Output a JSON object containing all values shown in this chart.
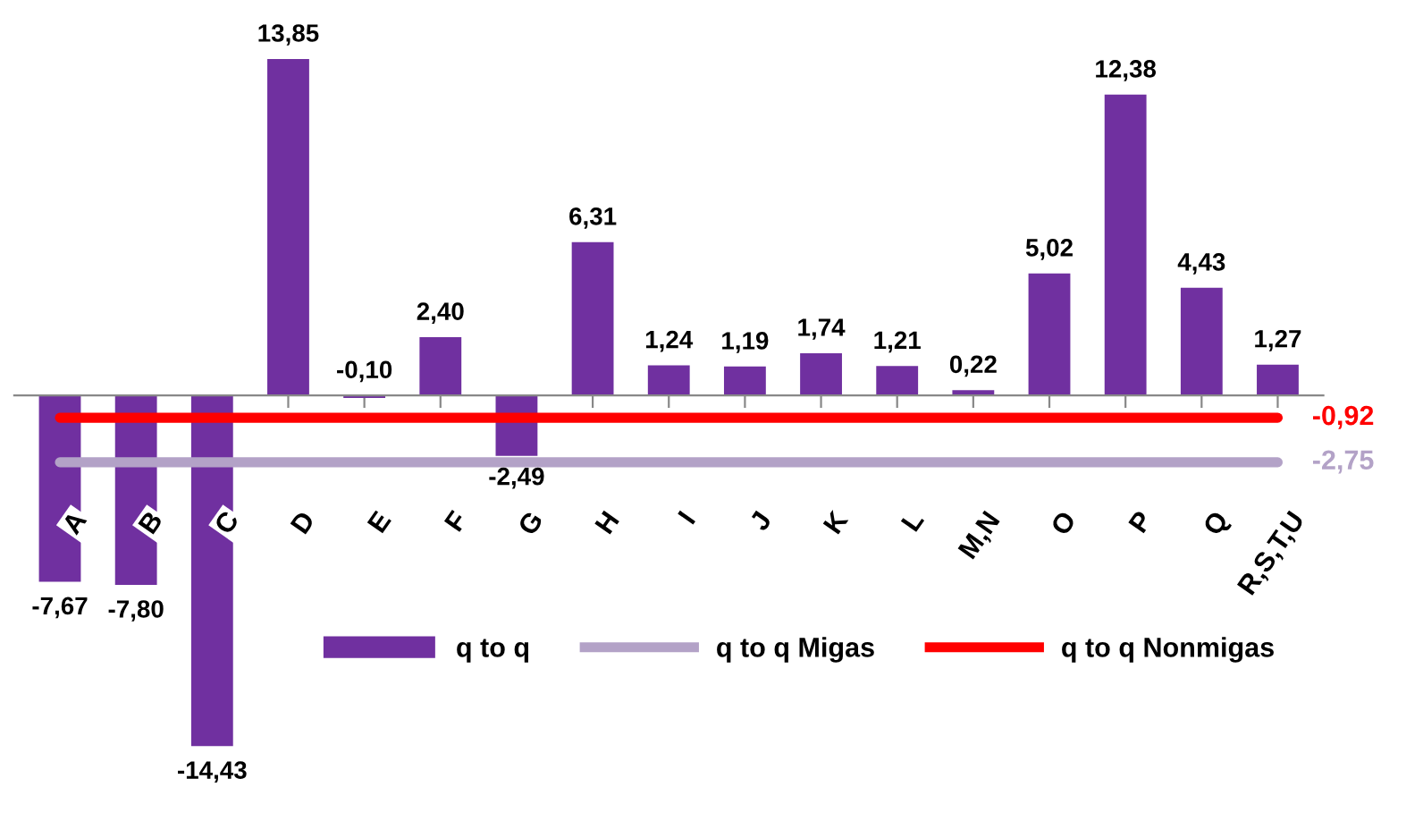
{
  "chart_data": {
    "type": "bar",
    "categories": [
      "A",
      "B",
      "C",
      "D",
      "E",
      "F",
      "G",
      "H",
      "I",
      "J",
      "K",
      "L",
      "M,N",
      "O",
      "P",
      "Q",
      "R,S,T,U"
    ],
    "series": [
      {
        "name": "q to q",
        "type": "bar",
        "color": "#7030a0",
        "values": [
          -7.67,
          -7.8,
          -14.43,
          13.85,
          -0.1,
          2.4,
          -2.49,
          6.31,
          1.24,
          1.19,
          1.74,
          1.21,
          0.22,
          5.02,
          12.38,
          4.43,
          1.27
        ],
        "value_labels": [
          "-7,67",
          "-7,80",
          "-14,43",
          "13,85",
          "-0,10",
          "2,40",
          "-2,49",
          "6,31",
          "1,24",
          "1,19",
          "1,74",
          "1,21",
          "0,22",
          "5,02",
          "12,38",
          "4,43",
          "1,27"
        ]
      },
      {
        "name": "q to q Migas",
        "type": "line",
        "color": "#b3a2c7",
        "values": [
          -2.75,
          -2.75,
          -2.75,
          -2.75,
          -2.75,
          -2.75,
          -2.75,
          -2.75,
          -2.75,
          -2.75,
          -2.75,
          -2.75,
          -2.75,
          -2.75,
          -2.75,
          -2.75,
          -2.75
        ],
        "value_labels": [
          null,
          null,
          null,
          null,
          null,
          null,
          null,
          null,
          null,
          null,
          null,
          null,
          null,
          null,
          null,
          null,
          "-2,75"
        ]
      },
      {
        "name": "q to q Nonmigas",
        "type": "line",
        "color": "#ff0000",
        "values": [
          -0.92,
          -0.92,
          -0.92,
          -0.92,
          -0.92,
          -0.92,
          -0.92,
          -0.92,
          -0.92,
          -0.92,
          -0.92,
          -0.92,
          -0.92,
          -0.92,
          -0.92,
          -0.92,
          -0.92
        ],
        "value_labels": [
          null,
          null,
          null,
          null,
          null,
          null,
          null,
          null,
          null,
          null,
          null,
          null,
          null,
          null,
          null,
          null,
          "-0,92"
        ]
      }
    ],
    "legend": "bottom",
    "grid": false,
    "tick_labels": "x"
  }
}
